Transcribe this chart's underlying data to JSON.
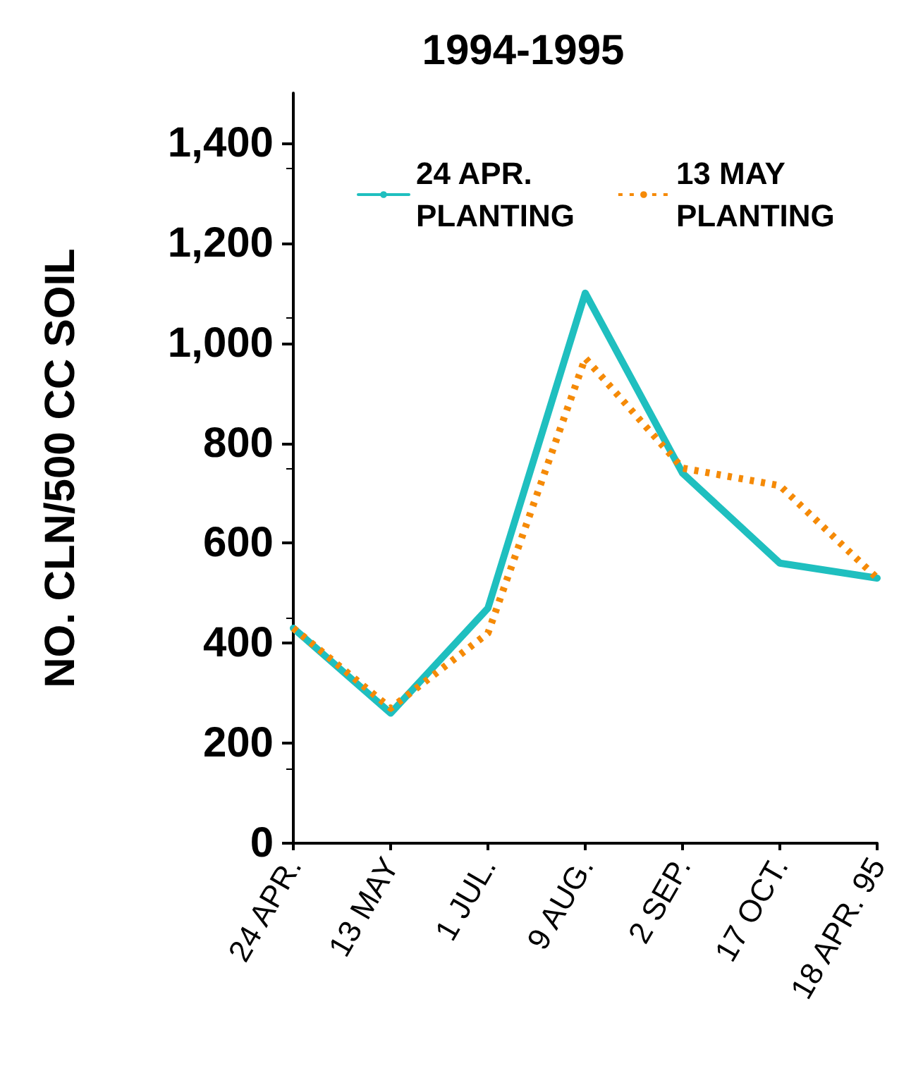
{
  "chart_data": {
    "type": "line",
    "title": "1994-1995",
    "ylabel": "NO. CLN/500 CC SOIL",
    "categories": [
      "24 APR.",
      "13 MAY",
      "1 JUL.",
      "9 AUG.",
      "2 SEP.",
      "17 OCT.",
      "18 APR. 95"
    ],
    "series": [
      {
        "name": "24 APR.\nPLANTING",
        "color": "#1fbfbf",
        "line_style": "solid",
        "values": [
          430,
          260,
          470,
          1100,
          740,
          560,
          530
        ]
      },
      {
        "name": "13 MAY\nPLANTING",
        "color": "#f58a07",
        "line_style": "dotted",
        "values": [
          430,
          270,
          420,
          970,
          750,
          715,
          530
        ]
      }
    ],
    "ylim": [
      0,
      1500
    ],
    "yticks": [
      0,
      200,
      400,
      {
        "value": 600,
        "label": "600"
      },
      800,
      {
        "value": 1000,
        "label": "1,000"
      },
      {
        "value": 1200,
        "label": "1,200"
      },
      {
        "value": 1400,
        "label": "1,400"
      }
    ],
    "grid": false,
    "legend": "top",
    "marker": "none"
  }
}
